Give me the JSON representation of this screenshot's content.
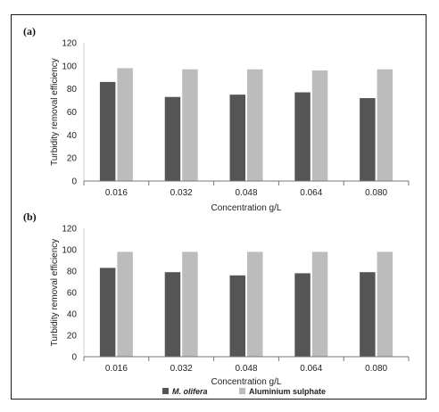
{
  "colors": {
    "series0": "#555555",
    "series1": "#bcbcbc",
    "axis": "#777777",
    "text": "#222222"
  },
  "chart_data": [
    {
      "type": "bar",
      "panel_label": "(a)",
      "categories": [
        "0.016",
        "0.032",
        "0.048",
        "0.064",
        "0.080"
      ],
      "series": [
        {
          "name": "M. olifera",
          "values": [
            86,
            73,
            75,
            77,
            72
          ]
        },
        {
          "name": "Aluminium sulphate",
          "values": [
            98,
            97,
            97,
            96,
            97
          ]
        }
      ],
      "xlabel": "Concentration g/L",
      "ylabel": "Turbidity removal efficiency",
      "ylim": [
        0,
        120
      ],
      "yticks": [
        "0",
        "20",
        "40",
        "60",
        "80",
        "100",
        "120"
      ],
      "grid": false
    },
    {
      "type": "bar",
      "panel_label": "(b)",
      "categories": [
        "0.016",
        "0.032",
        "0.048",
        "0.064",
        "0.080"
      ],
      "series": [
        {
          "name": "M. olifera",
          "values": [
            83,
            79,
            76,
            78,
            79
          ]
        },
        {
          "name": "Aluminium sulphate",
          "values": [
            98,
            98,
            98,
            98,
            98
          ]
        }
      ],
      "xlabel": "Concentration g/L",
      "ylabel": "Turbidity removal efficiency",
      "ylim": [
        0,
        120
      ],
      "yticks": [
        "0",
        "20",
        "40",
        "60",
        "80",
        "100",
        "120"
      ],
      "grid": false
    }
  ],
  "legend": {
    "placement": "bottom",
    "items": [
      {
        "label": "M. olifera",
        "italic": true
      },
      {
        "label": "Aluminium sulphate",
        "italic": false
      }
    ]
  }
}
